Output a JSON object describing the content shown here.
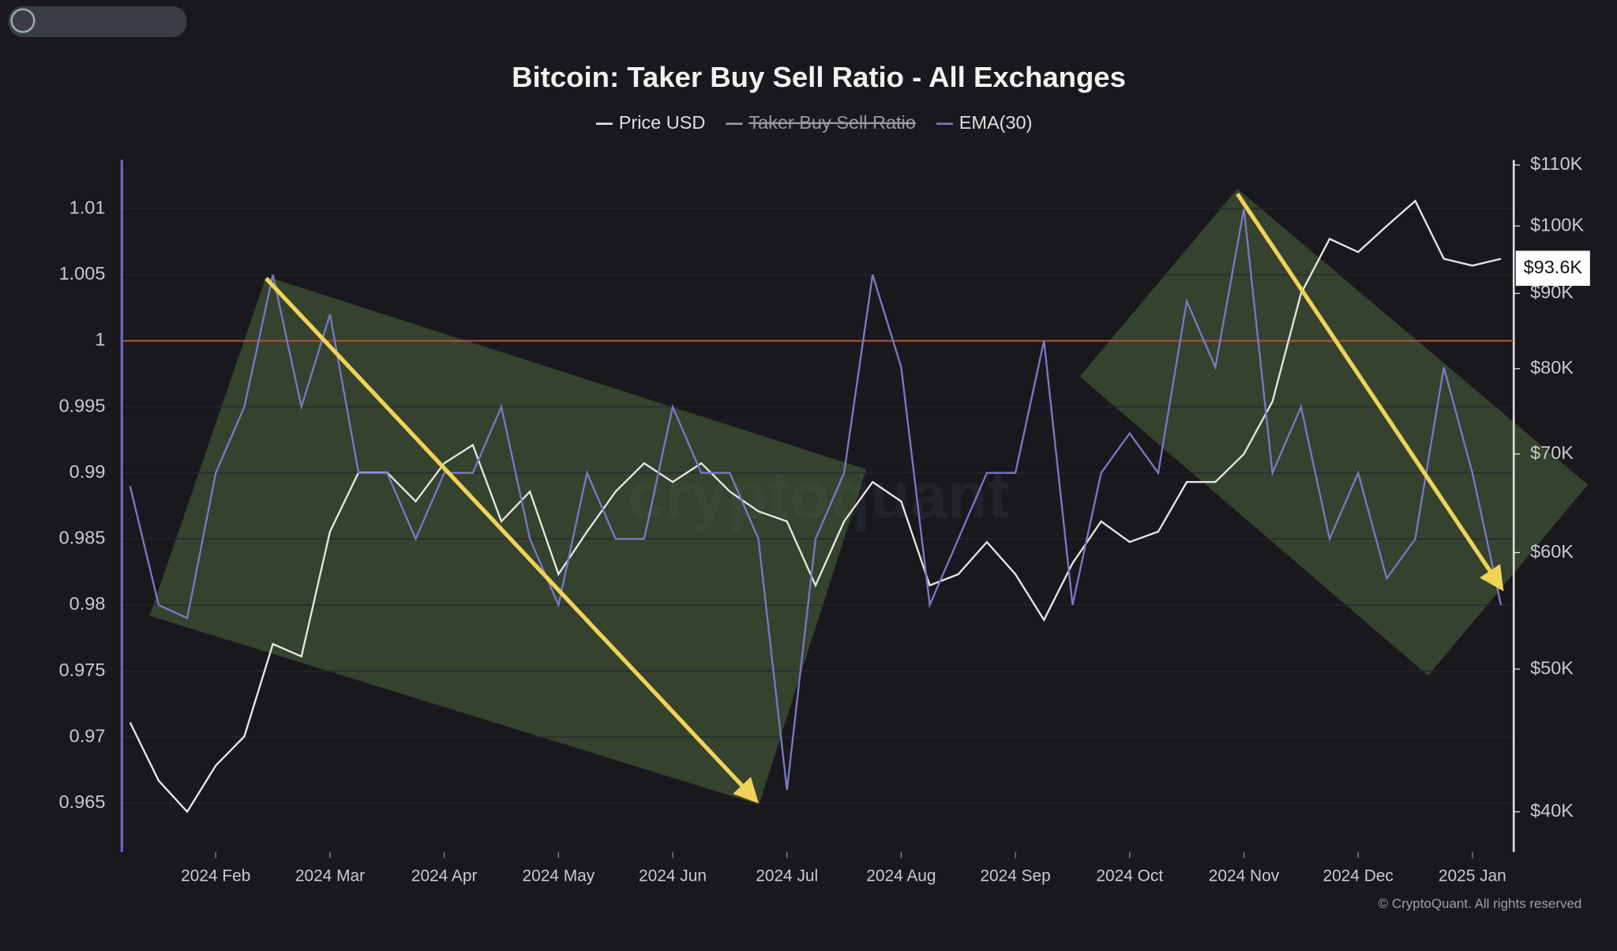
{
  "chart_data": {
    "type": "line",
    "title": "Bitcoin: Taker Buy Sell Ratio - All Exchanges",
    "categories": [
      null,
      null,
      null,
      "2024 Feb",
      null,
      null,
      null,
      "2024 Mar",
      null,
      null,
      null,
      "2024 Apr",
      null,
      null,
      null,
      "2024 May",
      null,
      null,
      null,
      "2024 Jun",
      null,
      null,
      null,
      "2024 Jul",
      null,
      null,
      null,
      "2024 Aug",
      null,
      null,
      null,
      "2024 Sep",
      null,
      null,
      null,
      "2024 Oct",
      null,
      null,
      null,
      "2024 Nov",
      null,
      null,
      null,
      "2024 Dec",
      null,
      null,
      null,
      "2025 Jan",
      null
    ],
    "series": [
      {
        "name": "Price USD",
        "color": "#e6e6e6",
        "axis": "y2",
        "values": [
          46000,
          42000,
          40000,
          43000,
          45000,
          52000,
          51000,
          62000,
          68000,
          68000,
          65000,
          69000,
          71000,
          63000,
          66000,
          58000,
          62000,
          66000,
          69000,
          67000,
          69000,
          66000,
          64000,
          63000,
          57000,
          63000,
          67000,
          65000,
          57000,
          58000,
          61000,
          58000,
          54000,
          59000,
          63000,
          61000,
          62000,
          67000,
          67000,
          70000,
          76000,
          90000,
          98000,
          96000,
          100000,
          104000,
          95000,
          94000,
          95000
        ]
      },
      {
        "name": "EMA(30)",
        "color": "#7a78c4",
        "values": [
          0.989,
          0.98,
          0.979,
          0.99,
          0.995,
          1.005,
          0.995,
          1.002,
          0.99,
          0.99,
          0.985,
          0.99,
          0.99,
          0.995,
          0.985,
          0.98,
          0.99,
          0.985,
          0.985,
          0.995,
          0.99,
          0.99,
          0.985,
          0.966,
          0.985,
          0.99,
          1.005,
          0.998,
          0.98,
          0.985,
          0.99,
          0.99,
          1.0,
          0.98,
          0.99,
          0.993,
          0.99,
          1.003,
          0.998,
          1.01,
          0.99,
          0.995,
          0.985,
          0.99,
          0.982,
          0.985,
          0.998,
          0.99,
          0.98
        ]
      }
    ],
    "hidden_legend_entries": [
      {
        "name": "Taker Buy Sell Ratio",
        "color": "#9a9aa0"
      }
    ],
    "ylim": [
      0.9613,
      1.0137
    ],
    "yticks": [
      0.965,
      0.97,
      0.975,
      0.98,
      0.985,
      0.99,
      0.995,
      1,
      1.005,
      1.01
    ],
    "y2lim": [
      37560,
      110900
    ],
    "y2_log": true,
    "y2ticks": [
      {
        "value": 40000,
        "label": "$40K"
      },
      {
        "value": 50000,
        "label": "$50K"
      },
      {
        "value": 60000,
        "label": "$60K"
      },
      {
        "value": 70000,
        "label": "$70K"
      },
      {
        "value": 80000,
        "label": "$80K"
      },
      {
        "value": 90000,
        "label": "$90K"
      },
      {
        "value": 100000,
        "label": "$100K"
      },
      {
        "value": 110000,
        "label": "$110K"
      }
    ],
    "reference_line": {
      "value": 1,
      "color": "#b5533c"
    },
    "last_price": {
      "value": 93600,
      "label": "$93.6K"
    },
    "watermark": "cryptoquant",
    "credit": "© CryptoQuant. All rights reserved"
  }
}
